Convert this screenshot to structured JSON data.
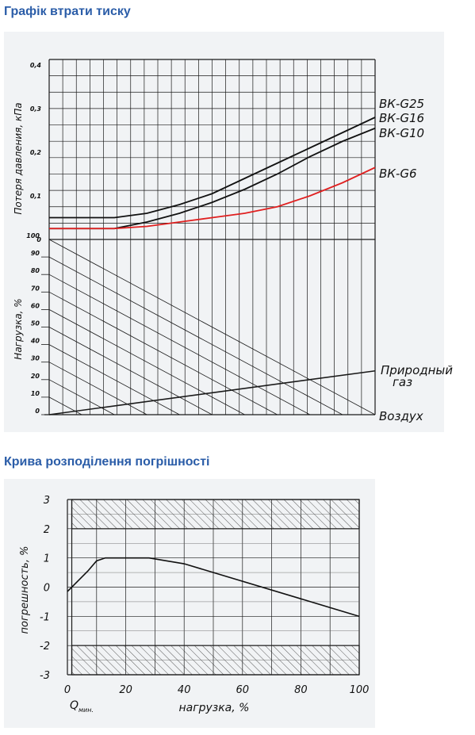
{
  "titles": {
    "chart1": "Графік втрати тиску",
    "chart2": "Крива розподілення погрішності"
  },
  "chart_data": [
    {
      "type": "line",
      "ylabel": "Потеря давления, кПа",
      "ylim": [
        0,
        0.45
      ],
      "y_ticks": [
        "0",
        "0,1",
        "0,2",
        "0,3",
        "0,4"
      ],
      "series": [
        {
          "name": "ВК-G25",
          "color": "#111111",
          "x": [
            0,
            0.2,
            0.3,
            0.4,
            0.5,
            0.6,
            0.7,
            0.8,
            0.9,
            1.0
          ],
          "y": [
            0.05,
            0.05,
            0.06,
            0.08,
            0.105,
            0.14,
            0.175,
            0.21,
            0.245,
            0.28
          ]
        },
        {
          "name": "ВК-G16",
          "color": "#111111",
          "x": [
            0,
            0.2,
            0.3,
            0.4,
            0.5,
            0.6,
            0.7,
            0.8,
            0.9,
            1.0
          ],
          "y": [
            0.025,
            0.025,
            0.04,
            0.06,
            0.085,
            0.115,
            0.15,
            0.19,
            0.225,
            0.255
          ]
        },
        {
          "name": "ВК-G10",
          "color": "#111111",
          "x": [
            0,
            0.2,
            0.3,
            0.4,
            0.5,
            0.6,
            0.7,
            0.8,
            0.9,
            1.0
          ],
          "y": [
            0.025,
            0.025,
            0.04,
            0.06,
            0.085,
            0.115,
            0.15,
            0.19,
            0.225,
            0.255
          ]
        },
        {
          "name": "ВК-G6",
          "color": "#e02020",
          "x": [
            0,
            0.2,
            0.3,
            0.4,
            0.5,
            0.6,
            0.7,
            0.8,
            0.9,
            1.0
          ],
          "y": [
            0.025,
            0.025,
            0.03,
            0.04,
            0.05,
            0.06,
            0.075,
            0.1,
            0.13,
            0.165
          ]
        }
      ],
      "lower_panel": {
        "ylabel": "Нагрузка, %",
        "ylim": [
          0,
          100
        ],
        "y_ticks": [
          "0",
          "10",
          "20",
          "30",
          "40",
          "50",
          "60",
          "70",
          "80",
          "90",
          "100"
        ],
        "lines": [
          {
            "name": "Природный газ",
            "start": 0,
            "end": 25
          },
          {
            "name": "Воздух",
            "start": 0,
            "end": 0
          }
        ]
      }
    },
    {
      "type": "line",
      "xlabel": "нагрузка, %",
      "ylabel": "погрешность, %",
      "xlim": [
        0,
        100
      ],
      "ylim": [
        -3,
        3
      ],
      "x_ticks": [
        "0",
        "20",
        "40",
        "60",
        "80",
        "100"
      ],
      "y_ticks": [
        "-3",
        "-2",
        "-1",
        "0",
        "1",
        "2",
        "3"
      ],
      "qmin_label": "Q",
      "qmin_sub": "мин.",
      "series": [
        {
          "name": "",
          "x": [
            0,
            7,
            10,
            13,
            28,
            40,
            100
          ],
          "y": [
            -0.15,
            0.55,
            0.9,
            1.0,
            1.0,
            0.8,
            -1.0
          ]
        }
      ],
      "hatched_bands": [
        [
          2,
          3
        ],
        [
          -3,
          -2
        ]
      ]
    }
  ]
}
